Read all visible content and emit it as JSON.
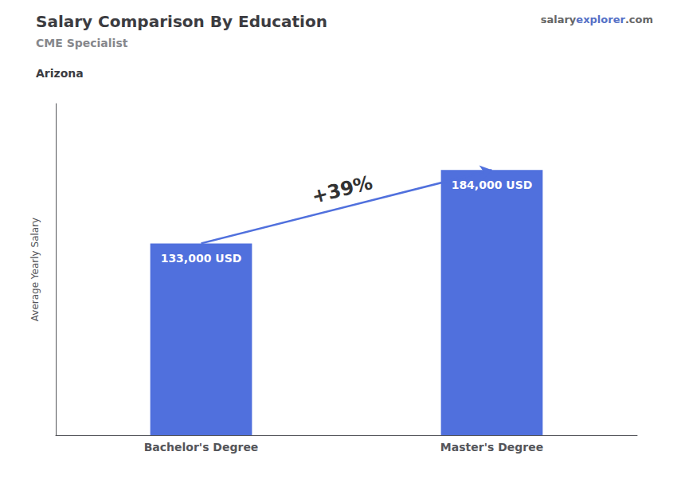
{
  "chart_data": {
    "type": "bar",
    "title": "Salary Comparison By Education",
    "subtitle": "CME Specialist",
    "location": "Arizona",
    "categories": [
      "Bachelor's Degree",
      "Master's Degree"
    ],
    "values": [
      133000,
      184000
    ],
    "value_labels": [
      "133,000 USD",
      "184,000 USD"
    ],
    "data_labels": true,
    "annotations": [
      "+39%"
    ],
    "watermark": [
      "salary",
      "explorer",
      ".com"
    ],
    "ylabel": "Average Yearly Salary",
    "ylim": [
      0,
      230000
    ],
    "yticks": [],
    "tick_labels": "x",
    "grid": false
  }
}
